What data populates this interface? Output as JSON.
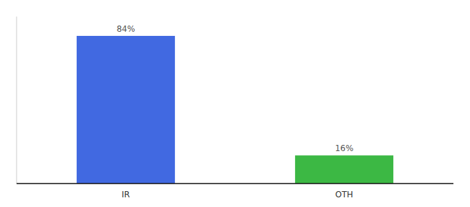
{
  "chart_data": {
    "type": "bar",
    "categories": [
      "IR",
      "OTH"
    ],
    "values": [
      84,
      16
    ],
    "colors": [
      "#4169e1",
      "#3cb844"
    ],
    "value_labels": [
      "84%",
      "16%"
    ],
    "data_labels": true,
    "ylim": [
      0,
      95
    ],
    "tick_labels": "x",
    "grid": false
  }
}
